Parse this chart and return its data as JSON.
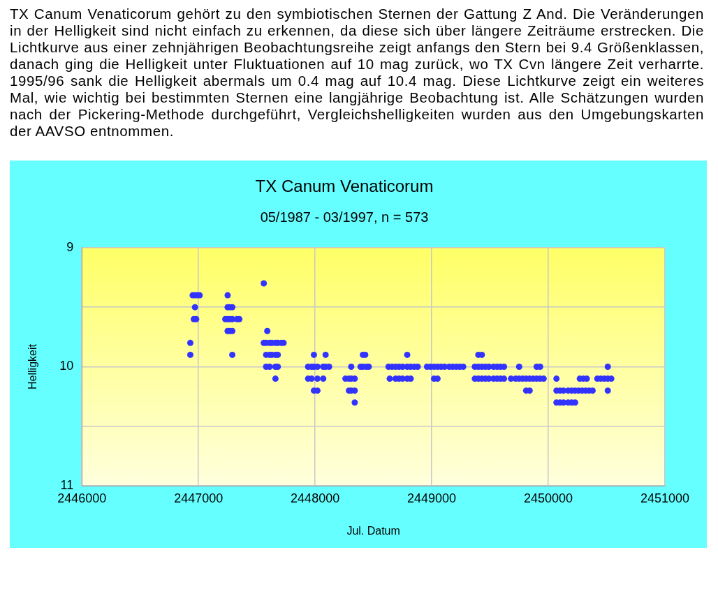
{
  "chart_data": {
    "type": "scatter",
    "title": "TX Canum Venaticorum",
    "subtitle": "05/1987 - 03/1997, n = 573",
    "xlabel": "Jul. Datum",
    "ylabel": "Helligkeit",
    "annotations": [
      "TX Canum Venaticorum gehört zu den symbiotischen Sternen der Gattung Z And. Die Veränderungen in der Helligkeit sind nicht einfach zu erkennen, da diese sich über längere Zeiträume erstrecken. Die Lichtkurve aus einer zehnjährigen Beobachtungsreihe zeigt anfangs den Stern bei 9.4 Größenklassen, danach ging die Helligkeit unter Fluktuationen auf 10 mag zurück, wo TX Cvn längere Zeit verharrte. 1995/96 sank  die Helligkeit abermals um 0.4 mag auf 10.4 mag. Diese Lichtkurve zeigt ein weiteres Mal, wie wichtig bei bestimmten Sternen eine langjährige Beobachtung ist.  Alle Schätzungen wurden nach der Pickering-Methode durchgeführt, Vergleichshelligkeiten wurden aus den Umgebungskarten der AAVSO entnommen."
    ],
    "xlim": [
      2446000,
      2451000
    ],
    "xticks": [
      2446000,
      2447000,
      2448000,
      2449000,
      2450000,
      2451000
    ],
    "ylim": [
      11,
      9
    ],
    "yticks": [
      9,
      {
        "value": 9.5,
        "label": null
      },
      10,
      {
        "value": 10.5,
        "label": null
      },
      11
    ],
    "grid": true,
    "legend": false,
    "marker": "circle",
    "series": [
      {
        "color": "#3333ff",
        "x": [
          2446950,
          2446970,
          2446990,
          2447010,
          2446970,
          2446960,
          2446980,
          2446930,
          2446930,
          2447250,
          2447250,
          2447270,
          2447290,
          2447230,
          2447250,
          2447270,
          2447290,
          2447330,
          2447350,
          2447250,
          2447270,
          2447290,
          2447290,
          2447560,
          2447590,
          2447560,
          2447580,
          2447610,
          2447630,
          2447660,
          2447680,
          2447710,
          2447730,
          2447580,
          2447610,
          2447630,
          2447660,
          2447680,
          2447580,
          2447610,
          2447660,
          2447680,
          2447660,
          2447990,
          2448090,
          2447940,
          2447970,
          2447990,
          2448020,
          2448070,
          2448090,
          2448120,
          2447940,
          2447970,
          2448020,
          2448070,
          2447990,
          2448020,
          2448310,
          2448260,
          2448290,
          2448310,
          2448340,
          2448290,
          2448310,
          2448340,
          2448340,
          2448410,
          2448430,
          2448390,
          2448410,
          2448440,
          2448460,
          2448790,
          2448630,
          2448660,
          2448690,
          2448720,
          2448750,
          2448790,
          2448820,
          2448850,
          2448880,
          2448640,
          2448690,
          2448720,
          2448750,
          2448790,
          2448820,
          2448960,
          2448990,
          2449020,
          2449050,
          2449080,
          2449110,
          2449150,
          2449180,
          2449210,
          2449240,
          2449270,
          2449020,
          2449050,
          2449400,
          2449430,
          2449370,
          2449400,
          2449430,
          2449460,
          2449490,
          2449530,
          2449560,
          2449590,
          2449620,
          2449370,
          2449400,
          2449430,
          2449460,
          2449490,
          2449530,
          2449560,
          2449590,
          2449620,
          2449750,
          2449900,
          2449930,
          2449680,
          2449720,
          2449750,
          2449780,
          2449810,
          2449840,
          2449870,
          2449900,
          2449930,
          2449960,
          2449810,
          2449840,
          2450070,
          2450070,
          2450100,
          2450130,
          2450170,
          2450200,
          2450230,
          2450260,
          2450290,
          2450320,
          2450350,
          2450380,
          2450510,
          2450070,
          2450100,
          2450130,
          2450170,
          2450200,
          2450230,
          2450270,
          2450300,
          2450330,
          2450420,
          2450450,
          2450480,
          2450510,
          2450540,
          2450510
        ],
        "values": [
          9.4,
          9.4,
          9.4,
          9.4,
          9.5,
          9.6,
          9.6,
          9.8,
          9.9,
          9.4,
          9.5,
          9.5,
          9.5,
          9.6,
          9.6,
          9.6,
          9.6,
          9.6,
          9.6,
          9.7,
          9.7,
          9.7,
          9.9,
          9.3,
          9.7,
          9.8,
          9.8,
          9.8,
          9.8,
          9.8,
          9.8,
          9.8,
          9.8,
          9.9,
          9.9,
          9.9,
          9.9,
          9.9,
          10,
          10,
          10,
          10,
          10.1,
          9.9,
          9.9,
          10,
          10,
          10,
          10,
          10,
          10,
          10,
          10.1,
          10.1,
          10.1,
          10.1,
          10.2,
          10.2,
          10,
          10.1,
          10.1,
          10.1,
          10.1,
          10.2,
          10.2,
          10.2,
          10.3,
          9.9,
          9.9,
          10,
          10,
          10,
          10,
          9.9,
          10,
          10,
          10,
          10,
          10,
          10,
          10,
          10,
          10,
          10.1,
          10.1,
          10.1,
          10.1,
          10.1,
          10.1,
          10,
          10,
          10,
          10,
          10,
          10,
          10,
          10,
          10,
          10,
          10,
          10.1,
          10.1,
          9.9,
          9.9,
          10,
          10,
          10,
          10,
          10,
          10,
          10,
          10,
          10,
          10.1,
          10.1,
          10.1,
          10.1,
          10.1,
          10.1,
          10.1,
          10.1,
          10.1,
          10,
          10,
          10,
          10.1,
          10.1,
          10.1,
          10.1,
          10.1,
          10.1,
          10.1,
          10.1,
          10.1,
          10.1,
          10.2,
          10.2,
          10.1,
          10.2,
          10.2,
          10.2,
          10.2,
          10.2,
          10.2,
          10.2,
          10.2,
          10.2,
          10.2,
          10.2,
          10.2,
          10.3,
          10.3,
          10.3,
          10.3,
          10.3,
          10.3,
          10.1,
          10.1,
          10.1,
          10.1,
          10.1,
          10.1,
          10.1,
          10.1,
          10
        ]
      }
    ]
  }
}
